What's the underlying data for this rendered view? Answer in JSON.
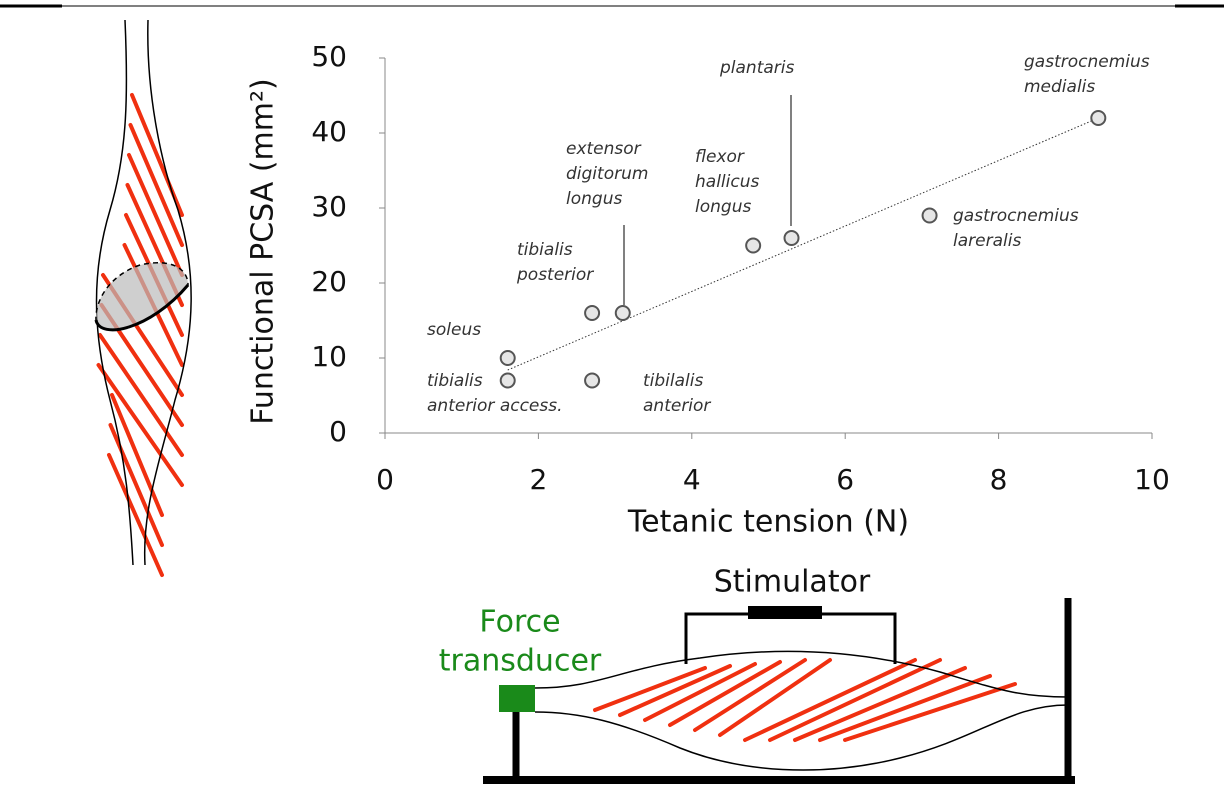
{
  "chart_data": {
    "type": "scatter",
    "x_label": "Tetanic tension (N)",
    "y_label": "Functional PCSA (mm²)",
    "x": [
      1.6,
      1.6,
      2.7,
      3.1,
      2.7,
      4.8,
      5.3,
      7.1,
      9.3
    ],
    "values": [
      10,
      7,
      16,
      16,
      7,
      25,
      26,
      29,
      42
    ],
    "point_labels": [
      [
        "soleus"
      ],
      [
        "tibialis",
        "anterior access."
      ],
      [
        "tibialis",
        "posterior"
      ],
      [
        "extensor",
        "digitorum",
        "longus"
      ],
      [
        "tibilalis",
        "anterior"
      ],
      [
        "flexor",
        "hallicus",
        "longus"
      ],
      [
        "plantaris"
      ],
      [
        "gastrocnemius",
        "lareralis"
      ],
      [
        "gastrocnemius",
        "medialis"
      ]
    ],
    "trendline": {
      "x": [
        1.6,
        9.3
      ],
      "y": [
        8.4,
        42
      ]
    },
    "xlim": [
      0,
      10
    ],
    "xticks": [
      0,
      2,
      4,
      6,
      8,
      10
    ],
    "ylim": [
      0,
      50
    ],
    "yticks": [
      0,
      10,
      20,
      30,
      40,
      50
    ],
    "color": "#555555"
  },
  "diagram": {
    "stimulator_label": "Stimulator",
    "transducer_label": [
      "Force",
      "transducer"
    ]
  }
}
